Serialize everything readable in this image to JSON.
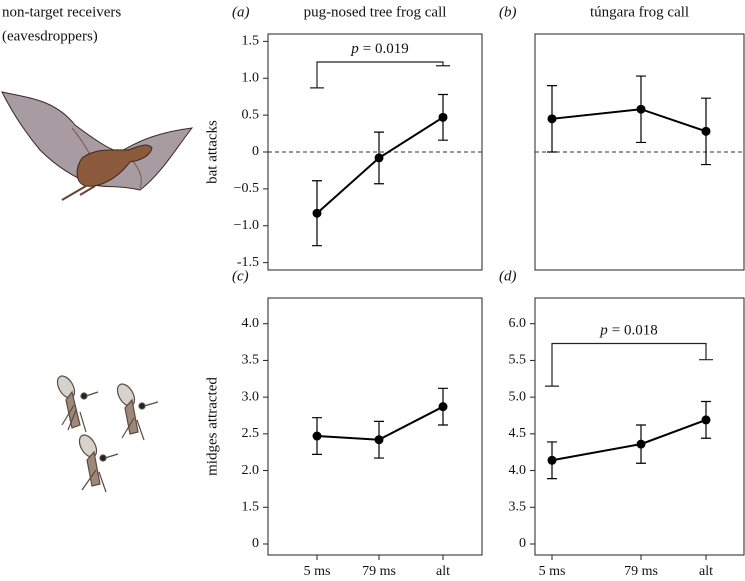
{
  "left_label": [
    "non-target receivers",
    "(eavesdroppers)"
  ],
  "chart_data": [
    {
      "type": "line",
      "panel": "(a)",
      "title": "pug-nosed tree frog call",
      "ylabel": "bat attacks",
      "categories": [
        null,
        null,
        null
      ],
      "series": [
        {
          "color": "#000000",
          "values": [
            -0.83,
            -0.08,
            0.47
          ],
          "errors": [
            0.44,
            0.35,
            0.31
          ]
        }
      ],
      "ylim": [
        -1.6,
        1.6
      ],
      "yticks": [
        -1.5,
        {
          "value": -1,
          "label": "−1.0"
        },
        {
          "value": -0.5,
          "label": "−0.5"
        },
        0,
        0.5,
        {
          "value": 1,
          "label": "1.0"
        },
        1.5
      ],
      "hline": 0,
      "bracket": {
        "y": 1.22,
        "ends": [
          0.87,
          1.17
        ],
        "label_italic": "p",
        "label": "= 0.019"
      }
    },
    {
      "type": "line",
      "panel": "(b)",
      "title": "túngara frog call",
      "categories": [
        null,
        null,
        null
      ],
      "series": [
        {
          "color": "#000000",
          "values": [
            0.45,
            0.58,
            0.28
          ],
          "errors": [
            0.45,
            0.45,
            0.45
          ]
        }
      ],
      "ylim": [
        -1.6,
        1.6
      ],
      "hline": 0
    },
    {
      "type": "line",
      "panel": "(c)",
      "ylabel": "midges attracted",
      "categories": [
        "5 ms",
        "79 ms",
        "alt"
      ],
      "series": [
        {
          "color": "#000000",
          "values": [
            2.47,
            2.42,
            2.87
          ],
          "errors": [
            0.25,
            0.25,
            0.25
          ]
        }
      ],
      "ylim": [
        -0.15,
        4.35
      ],
      "ybreak": [
        0,
        1
      ],
      "yticks": [
        0,
        1.5,
        {
          "value": 2,
          "label": "2.0"
        },
        2.5,
        {
          "value": 3,
          "label": "3.0"
        },
        3.5,
        {
          "value": 4,
          "label": "4.0"
        }
      ]
    },
    {
      "type": "line",
      "panel": "(d)",
      "categories": [
        "5 ms",
        "79 ms",
        "alt"
      ],
      "series": [
        {
          "color": "#000000",
          "values": [
            4.14,
            4.36,
            4.69
          ],
          "errors": [
            0.25,
            0.26,
            0.25
          ]
        }
      ],
      "ylim": [
        -0.15,
        6.35
      ],
      "ybreak": [
        0,
        3
      ],
      "yticks": [
        0,
        3.5,
        {
          "value": 4,
          "label": "4.0"
        },
        4.5,
        {
          "value": 5,
          "label": "5.0"
        },
        5.5,
        {
          "value": 6,
          "label": "6.0"
        }
      ],
      "bracket": {
        "y": 5.73,
        "ends": [
          5.15,
          5.51
        ],
        "label_italic": "p",
        "label": "= 0.018"
      }
    }
  ]
}
